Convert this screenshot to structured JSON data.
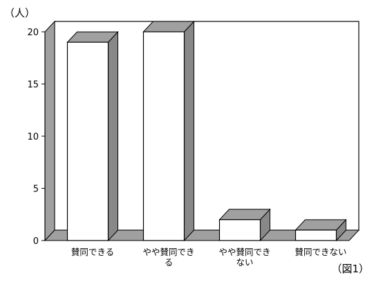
{
  "chart_data": {
    "type": "bar",
    "style": "3d",
    "categories": [
      [
        "賛同できる"
      ],
      [
        "やや賛同でき",
        "る"
      ],
      [
        "やや賛同でき",
        "ない"
      ],
      [
        "賛同できない"
      ]
    ],
    "values": [
      19,
      20,
      2,
      1
    ],
    "ylim": [
      0,
      20
    ],
    "yticks": [
      0,
      5,
      10,
      15,
      20
    ],
    "ylabel": "（人）",
    "xlabel": "",
    "title": "",
    "caption": "（図1）",
    "grid": false,
    "legend": "none",
    "colors": {
      "bar_front": "#ffffff",
      "bar_top": "#a0a0a0",
      "bar_side": "#888888",
      "floor": "#a0a0a0",
      "wall_left": "#a0a0a0",
      "wall_back": "#ffffff",
      "outline": "#000000"
    }
  }
}
